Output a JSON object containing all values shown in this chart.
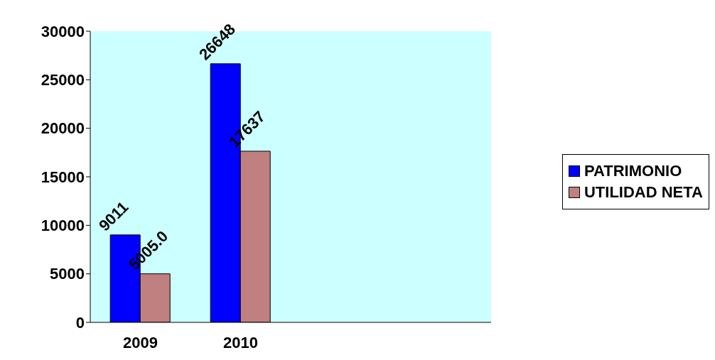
{
  "chart_data": {
    "type": "bar",
    "categories": [
      "2009",
      "2010",
      null,
      null
    ],
    "series": [
      {
        "name": "PATRIMONIO",
        "color": "#0000ff",
        "values": [
          9011,
          26648,
          null,
          null
        ],
        "value_labels": [
          "9011",
          "26648",
          null,
          null
        ]
      },
      {
        "name": "UTILIDAD NETA",
        "color": "#c08080",
        "values": [
          5005.0,
          17637,
          null,
          null
        ],
        "value_labels": [
          "5005.0",
          "17637",
          null,
          null
        ]
      }
    ],
    "ylim": [
      0,
      30000
    ],
    "yticks": [
      0,
      5000,
      10000,
      15000,
      20000,
      25000,
      30000
    ],
    "grid": false,
    "legend": "right"
  }
}
